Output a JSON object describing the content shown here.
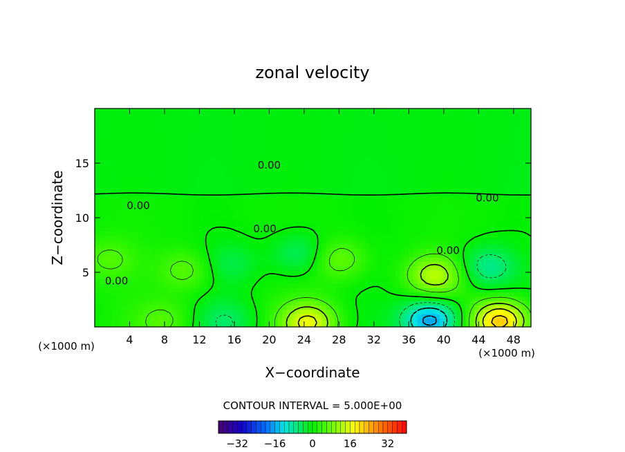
{
  "chart_data": {
    "type": "heatmap",
    "title": "zonal velocity",
    "xlabel": "X−coordinate",
    "ylabel": "Z−coordinate",
    "x_unit_label": "(×1000 m)",
    "xlim": [
      0,
      50
    ],
    "ylim": [
      0,
      20
    ],
    "x_ticks": [
      4,
      8,
      12,
      16,
      20,
      24,
      28,
      32,
      36,
      40,
      44,
      48
    ],
    "y_ticks": [
      5,
      10,
      15
    ],
    "contour_interval_text": "CONTOUR INTERVAL = 5.000E+00",
    "colorbar": {
      "range": [
        -40,
        40
      ],
      "ticks": [
        -32,
        -16,
        0,
        16,
        32
      ],
      "tick_labels": [
        "−32",
        "−16",
        "0",
        "16",
        "32"
      ]
    },
    "contour_labels": [
      {
        "text": "0.00",
        "x": 20,
        "z": 14.8
      },
      {
        "text": "0.00",
        "x": 5,
        "z": 11.1
      },
      {
        "text": "0.00",
        "x": 19.5,
        "z": 9.0
      },
      {
        "text": "0.00",
        "x": 45,
        "z": 11.8
      },
      {
        "text": "0.00",
        "x": 40.5,
        "z": 7.0
      },
      {
        "text": "0.00",
        "x": 2.5,
        "z": 4.2
      }
    ],
    "features": [
      {
        "type": "max",
        "x": 46.5,
        "z": 0.5,
        "value": 22
      },
      {
        "type": "max",
        "x": 24.5,
        "z": 0.4,
        "value": 15
      },
      {
        "type": "max",
        "x": 39,
        "z": 4.7,
        "value": 12
      },
      {
        "type": "min",
        "x": 38.5,
        "z": 0.6,
        "value": -18
      },
      {
        "type": "min",
        "x": 23.5,
        "z": 6.7,
        "value": -6
      },
      {
        "type": "max",
        "x": 28,
        "z": 6.2,
        "value": 7
      },
      {
        "type": "max",
        "x": 1.5,
        "z": 6.2,
        "value": 5
      },
      {
        "type": "max",
        "x": 10.5,
        "z": 5.2,
        "value": 6
      },
      {
        "type": "min",
        "x": 15,
        "z": 0.5,
        "value": -5
      },
      {
        "type": "min",
        "x": 45,
        "z": 5.5,
        "value": -8
      },
      {
        "type": "min",
        "x": 15.5,
        "z": 5.8,
        "value": -4
      },
      {
        "type": "max",
        "x": 8,
        "z": 0.6,
        "value": 5
      }
    ],
    "grid": false,
    "legend": "colorbar-bottom"
  }
}
